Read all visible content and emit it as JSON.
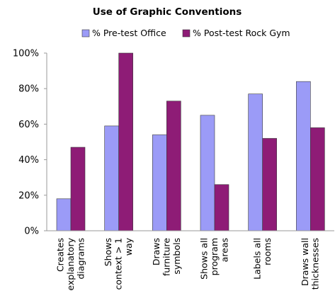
{
  "chart_data": {
    "type": "bar",
    "title": "Use of Graphic Conventions",
    "xlabel": "",
    "ylabel": "",
    "ylim": [
      0,
      100
    ],
    "yticks": [
      "0%",
      "20%",
      "40%",
      "60%",
      "80%",
      "100%"
    ],
    "ytick_values": [
      0,
      20,
      40,
      60,
      80,
      100
    ],
    "grid": false,
    "legend_position": "top",
    "categories": [
      [
        "Creates",
        "explanatory",
        "diagrams"
      ],
      [
        "Shows",
        "context > 1",
        "way"
      ],
      [
        "Draws",
        "furniture",
        "symbols"
      ],
      [
        "Shows all",
        "program",
        "areas"
      ],
      [
        "Labels all",
        "rooms"
      ],
      [
        "Draws wall",
        "thicknesses"
      ]
    ],
    "series": [
      {
        "name": "% Pre-test Office",
        "color": "#9b9bf7",
        "values": [
          18,
          59,
          54,
          65,
          77,
          84
        ]
      },
      {
        "name": "% Post-test Rock Gym",
        "color": "#8e1c76",
        "values": [
          47,
          100,
          73,
          26,
          52,
          58
        ]
      }
    ]
  }
}
